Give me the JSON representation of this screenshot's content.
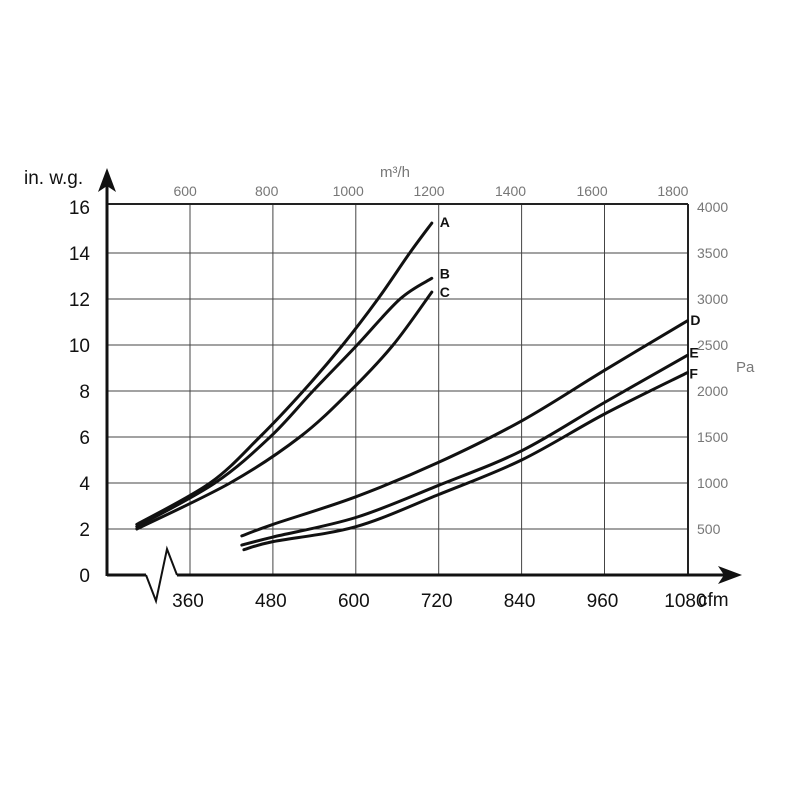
{
  "chart_data": {
    "type": "line",
    "title": "",
    "xlabel": "cfm",
    "ylabel": "in. w.g.",
    "x2label": "m³/h",
    "y2label": "Pa",
    "xlim": [
      240,
      1080
    ],
    "ylim": [
      0,
      16
    ],
    "x_ticks": [
      360,
      480,
      600,
      720,
      840,
      960,
      1080
    ],
    "y_ticks": [
      0,
      2,
      4,
      6,
      8,
      10,
      12,
      14,
      16
    ],
    "x2_ticks": [
      {
        "label": "600",
        "cfm": 353
      },
      {
        "label": "800",
        "cfm": 471
      },
      {
        "label": "1000",
        "cfm": 589
      },
      {
        "label": "1200",
        "cfm": 706
      },
      {
        "label": "1400",
        "cfm": 824
      },
      {
        "label": "1600",
        "cfm": 942
      },
      {
        "label": "1800",
        "cfm": 1059
      }
    ],
    "y2_ticks": [
      {
        "label": "500",
        "inwg": 2
      },
      {
        "label": "1000",
        "inwg": 4
      },
      {
        "label": "1500",
        "inwg": 6
      },
      {
        "label": "2000",
        "inwg": 8
      },
      {
        "label": "2500",
        "inwg": 10
      },
      {
        "label": "3000",
        "inwg": 12
      },
      {
        "label": "3500",
        "inwg": 14
      },
      {
        "label": "4000",
        "inwg": 16
      }
    ],
    "grid": true,
    "axis_break": true,
    "series": [
      {
        "name": "A",
        "points": [
          [
            283,
            2.2
          ],
          [
            389,
            4
          ],
          [
            461,
            6
          ],
          [
            524,
            8
          ],
          [
            581,
            10
          ],
          [
            632,
            12
          ],
          [
            678,
            14
          ],
          [
            710,
            15.3
          ]
        ]
      },
      {
        "name": "B",
        "points": [
          [
            283,
            2.1
          ],
          [
            396,
            4
          ],
          [
            476,
            6
          ],
          [
            538,
            8
          ],
          [
            602,
            10
          ],
          [
            664,
            12
          ],
          [
            710,
            12.9
          ]
        ]
      },
      {
        "name": "C",
        "points": [
          [
            283,
            2.0
          ],
          [
            418,
            4
          ],
          [
            519,
            6
          ],
          [
            592,
            8
          ],
          [
            654,
            10
          ],
          [
            710,
            12.3
          ]
        ]
      },
      {
        "name": "D",
        "points": [
          [
            435,
            1.7
          ],
          [
            480,
            2.2
          ],
          [
            600,
            3.4
          ],
          [
            720,
            4.9
          ],
          [
            840,
            6.7
          ],
          [
            960,
            8.9
          ],
          [
            1080,
            11.05
          ]
        ]
      },
      {
        "name": "E",
        "points": [
          [
            435,
            1.3
          ],
          [
            480,
            1.65
          ],
          [
            600,
            2.5
          ],
          [
            720,
            3.9
          ],
          [
            840,
            5.4
          ],
          [
            960,
            7.5
          ],
          [
            1080,
            9.55
          ]
        ]
      },
      {
        "name": "F",
        "points": [
          [
            438,
            1.1
          ],
          [
            480,
            1.45
          ],
          [
            600,
            2.1
          ],
          [
            720,
            3.5
          ],
          [
            840,
            5.0
          ],
          [
            960,
            7.0
          ],
          [
            1080,
            8.8
          ]
        ]
      }
    ]
  }
}
